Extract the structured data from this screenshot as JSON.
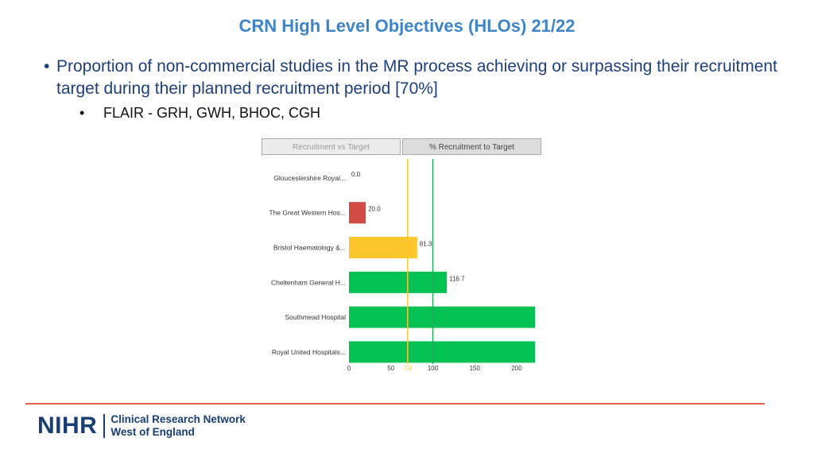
{
  "slide": {
    "title": "CRN High Level Objectives (HLOs) 21/22",
    "bullet_marker": "•",
    "bullet_text": "Proportion of non-commercial studies in the MR process achieving or surpassing their recruitment target during their planned recruitment period [70%]",
    "sub_bullet_text": "FLAIR - GRH, GWH, BHOC, CGH"
  },
  "tabs": [
    {
      "label": "Recruitment vs Target",
      "selected": false
    },
    {
      "label": "% Recruitment to Target",
      "selected": true
    }
  ],
  "chart_data": {
    "type": "bar",
    "orientation": "horizontal",
    "categories": [
      "Gloucestershire Royal...",
      "The Great Western Hos...",
      "Bristol Haematology &...",
      "Cheltenham General H...",
      "Southmead Hospital",
      "Royal United Hospitals..."
    ],
    "values": [
      0.0,
      20.0,
      81.3,
      116.7,
      null,
      null
    ],
    "value_labels": [
      "0.0",
      "20.0",
      "81.3",
      "116.7",
      "",
      ""
    ],
    "bar_colors": [
      "#d24b45",
      "#d24b45",
      "#fcc72c",
      "#05c153",
      "#05c153",
      "#05c153"
    ],
    "bar_extends_past_axis": [
      false,
      false,
      false,
      false,
      true,
      true
    ],
    "xlim": [
      0,
      220
    ],
    "x_ticks": [
      0,
      50,
      100,
      150,
      200
    ],
    "reference_lines": [
      {
        "value": 70,
        "color": "#fcc72c",
        "label": "70"
      },
      {
        "value": 100,
        "color": "#1fae5b",
        "label": ""
      }
    ],
    "grid": false
  },
  "footer": {
    "logo_mark": "NIHR",
    "logo_line1": "Clinical Research Network",
    "logo_line2": "West of England",
    "divider_color": "#e0604d"
  }
}
